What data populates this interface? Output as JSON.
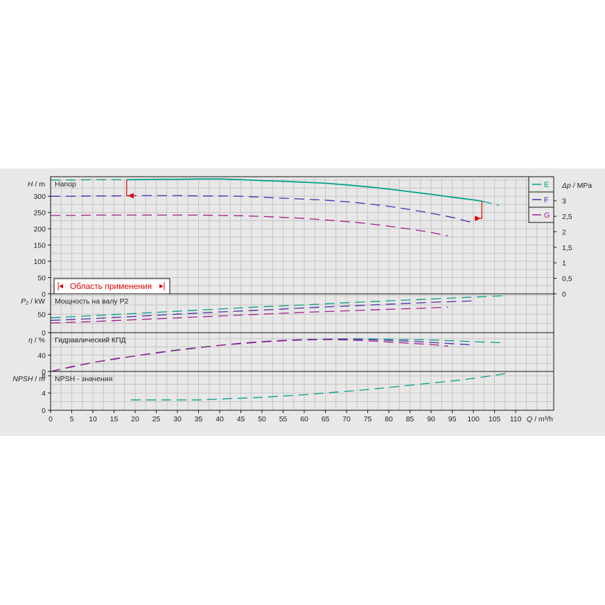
{
  "chart_data": {
    "type": "line",
    "x": {
      "label_symbol": "Q",
      "label_unit": " / m³/h",
      "range": [
        0,
        119
      ],
      "ticks": [
        0,
        5,
        10,
        15,
        20,
        25,
        30,
        35,
        40,
        45,
        50,
        55,
        60,
        65,
        70,
        75,
        80,
        85,
        90,
        95,
        100,
        105,
        110
      ]
    },
    "legend": {
      "placement": "top-right",
      "entries": [
        {
          "name": "E",
          "color": "#00a08a"
        },
        {
          "name": "F",
          "color": "#4b2aa8"
        },
        {
          "name": "G",
          "color": "#a0208a"
        }
      ]
    },
    "panels": {
      "head": {
        "title": "Напор",
        "y_symbol": "H",
        "y_unit": " / m",
        "ylim": [
          0,
          360
        ],
        "yticks": [
          0,
          50,
          100,
          150,
          200,
          250,
          300
        ],
        "right_symbol": "Δp",
        "right_unit": " / MPa",
        "right_ticks": [
          {
            "v": 0,
            "label": "0"
          },
          {
            "v": 0.5,
            "label": "0,5"
          },
          {
            "v": 1,
            "label": "1"
          },
          {
            "v": 1.5,
            "label": "1,5"
          },
          {
            "v": 2,
            "label": "2"
          },
          {
            "v": 2.5,
            "label": "2,5"
          },
          {
            "v": 3,
            "label": "3"
          }
        ],
        "right_scale_per_m": 0.01049,
        "application_range": {
          "label": "Область применения",
          "q_min": 18,
          "q_max": 102,
          "color": "#e00000"
        },
        "series": [
          {
            "name": "E",
            "color": "#00a08a",
            "x": [
              0,
              5,
              10,
              15,
              18,
              20,
              25,
              30,
              35,
              40,
              45,
              50,
              55,
              60,
              65,
              70,
              75,
              80,
              85,
              90,
              95,
              100,
              102,
              103,
              106
            ],
            "y": [
              350,
              350,
              351,
              351,
              351,
              351,
              352,
              352,
              353,
              353,
              351,
              348,
              346,
              343,
              340,
              335,
              329,
              322,
              314,
              306,
              297,
              289,
              285,
              282,
              272
            ],
            "solid_from": 18,
            "solid_to": 102
          },
          {
            "name": "F",
            "color": "#4b2aa8",
            "x": [
              0,
              5,
              10,
              15,
              20,
              25,
              30,
              35,
              40,
              45,
              50,
              55,
              60,
              65,
              70,
              75,
              80,
              85,
              90,
              95,
              96,
              100
            ],
            "y": [
              300,
              300,
              301,
              301,
              302,
              302,
              302,
              301,
              301,
              300,
              297,
              294,
              291,
              288,
              283,
              277,
              269,
              259,
              248,
              235,
              232,
              218
            ]
          },
          {
            "name": "G",
            "color": "#a0208a",
            "x": [
              0,
              5,
              10,
              15,
              20,
              25,
              30,
              35,
              40,
              45,
              50,
              55,
              60,
              65,
              70,
              75,
              80,
              85,
              90,
              94
            ],
            "y": [
              241,
              241,
              242,
              242,
              242,
              242,
              242,
              242,
              241,
              240,
              238,
              235,
              232,
              227,
              222,
              216,
              208,
              199,
              189,
              178
            ]
          }
        ]
      },
      "power": {
        "title": "Мощность на валу P2",
        "y_symbol": "P₂",
        "y_unit": " / kW",
        "ylim": [
          0,
          105
        ],
        "yticks": [
          0,
          50
        ],
        "series": [
          {
            "name": "E",
            "color": "#00a08a",
            "x": [
              0,
              10,
              20,
              30,
              40,
              50,
              60,
              70,
              80,
              90,
              100,
              102,
              103,
              107
            ],
            "y": [
              40,
              46,
              52,
              58,
              64,
              70,
              75,
              81,
              86,
              91,
              96,
              97,
              98,
              100
            ]
          },
          {
            "name": "F",
            "color": "#4b2aa8",
            "x": [
              0,
              10,
              20,
              30,
              40,
              50,
              60,
              70,
              80,
              90,
              100
            ],
            "y": [
              33,
              38,
              44,
              50,
              56,
              61,
              67,
              72,
              77,
              82,
              86
            ]
          },
          {
            "name": "G",
            "color": "#a0208a",
            "x": [
              0,
              10,
              20,
              30,
              40,
              50,
              60,
              70,
              80,
              90,
              94
            ],
            "y": [
              26,
              30,
              35,
              40,
              45,
              50,
              55,
              59,
              63,
              67,
              69
            ]
          }
        ]
      },
      "efficiency": {
        "title": "Гидравлический КПД",
        "y_symbol": "η",
        "y_unit": " / %",
        "ylim": [
          0,
          95
        ],
        "yticks": [
          0,
          40
        ],
        "series": [
          {
            "name": "E",
            "color": "#00a08a",
            "x": [
              0,
              5,
              10,
              15,
              20,
              25,
              30,
              35,
              40,
              45,
              50,
              55,
              60,
              65,
              70,
              75,
              80,
              85,
              90,
              95,
              100,
              102,
              103,
              107
            ],
            "y": [
              0,
              11,
              22,
              30,
              38,
              46,
              53,
              59,
              64,
              69,
              73,
              76,
              78,
              79,
              80,
              80,
              79,
              78,
              77,
              75,
              73,
              72,
              72,
              70
            ]
          },
          {
            "name": "F",
            "color": "#4b2aa8",
            "x": [
              0,
              5,
              10,
              15,
              20,
              25,
              30,
              35,
              40,
              45,
              50,
              55,
              60,
              65,
              70,
              75,
              80,
              85,
              90,
              95,
              100
            ],
            "y": [
              0,
              11,
              22,
              30,
              38,
              45,
              52,
              58,
              64,
              69,
              73,
              76,
              78,
              79,
              79,
              78,
              76,
              74,
              71,
              68,
              65
            ]
          },
          {
            "name": "G",
            "color": "#a0208a",
            "x": [
              0,
              5,
              10,
              15,
              20,
              25,
              30,
              35,
              40,
              45,
              50,
              55,
              60,
              65,
              70,
              75,
              80,
              85,
              90,
              94
            ],
            "y": [
              0,
              12,
              22,
              31,
              38,
              46,
              52,
              58,
              64,
              68,
              72,
              75,
              77,
              78,
              77,
              75,
              72,
              69,
              66,
              62
            ]
          }
        ]
      },
      "npsh": {
        "title": "NPSH - значения",
        "y_symbol": "NPSH",
        "y_unit": " / m",
        "ylim": [
          0,
          9
        ],
        "yticks": [
          0,
          4,
          8
        ],
        "series": [
          {
            "name": "E",
            "color": "#00a08a",
            "x": [
              19,
              25,
              30,
              35,
              40,
              45,
              50,
              55,
              60,
              65,
              70,
              75,
              80,
              85,
              90,
              95,
              100,
              105,
              108
            ],
            "y": [
              2.4,
              2.4,
              2.4,
              2.4,
              2.6,
              2.8,
              3.0,
              3.3,
              3.6,
              4.0,
              4.4,
              4.8,
              5.3,
              5.8,
              6.3,
              6.8,
              7.4,
              8.1,
              8.6
            ]
          }
        ]
      }
    }
  }
}
